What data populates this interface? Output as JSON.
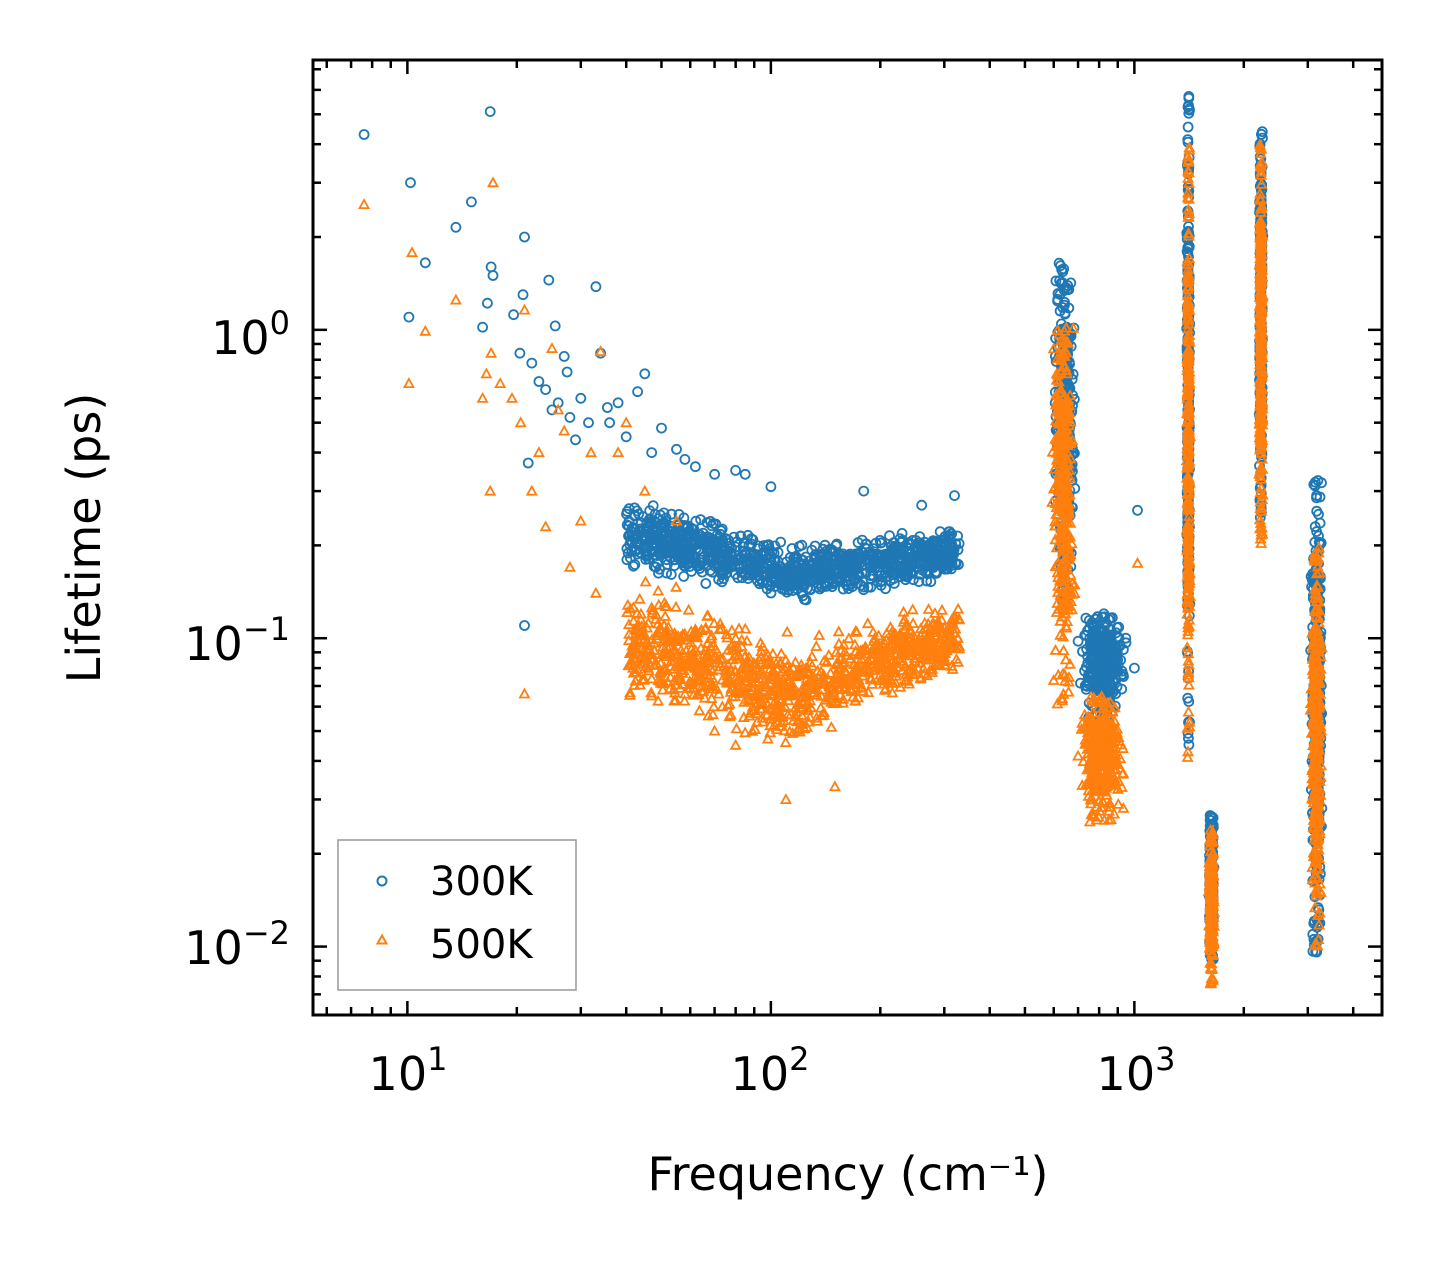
{
  "chart_data": {
    "type": "scatter",
    "xscale": "log",
    "yscale": "log",
    "xlim": [
      5.5,
      4800
    ],
    "ylim": [
      0.006,
      7.5
    ],
    "xlabel": "Frequency (cm⁻¹)",
    "ylabel": "Lifetime (ps)",
    "xticks": [
      {
        "base": "10",
        "exp": "1"
      },
      {
        "base": "10",
        "exp": "2"
      },
      {
        "base": "10",
        "exp": "3"
      }
    ],
    "yticks": [
      {
        "base": "10",
        "exp": "0"
      },
      {
        "base": "10",
        "exp": "−1"
      },
      {
        "base": "10",
        "exp": "−2"
      }
    ],
    "xtick_values": [
      10,
      100,
      1000
    ],
    "ytick_values": [
      1,
      0.1,
      0.01
    ],
    "legend": {
      "position": "lower-left"
    },
    "series": [
      {
        "name": "300K",
        "marker": "circle",
        "color": "#1f77b4",
        "points": [
          [
            7.6,
            4.3
          ],
          [
            10.2,
            3.0
          ],
          [
            10.1,
            1.1
          ],
          [
            11.2,
            1.65
          ],
          [
            13.6,
            2.15
          ],
          [
            15.0,
            2.6
          ],
          [
            16.1,
            1.02
          ],
          [
            16.6,
            1.22
          ],
          [
            16.9,
            5.1
          ],
          [
            17.0,
            1.6
          ],
          [
            17.2,
            1.5
          ],
          [
            19.6,
            1.12
          ],
          [
            20.4,
            0.84
          ],
          [
            20.8,
            1.3
          ],
          [
            21.0,
            2.0
          ],
          [
            21.5,
            0.37
          ],
          [
            21.0,
            0.11
          ],
          [
            22.0,
            0.78
          ],
          [
            23.0,
            0.68
          ],
          [
            24.0,
            0.64
          ],
          [
            24.5,
            1.45
          ],
          [
            25.0,
            0.55
          ],
          [
            25.5,
            1.03
          ],
          [
            26.0,
            0.58
          ],
          [
            27.0,
            0.82
          ],
          [
            27.5,
            0.73
          ],
          [
            28.0,
            0.52
          ],
          [
            29.0,
            0.44
          ],
          [
            30.0,
            0.6
          ],
          [
            31.5,
            0.5
          ],
          [
            33.0,
            1.38
          ],
          [
            34.0,
            0.84
          ],
          [
            35.5,
            0.56
          ],
          [
            36.0,
            0.5
          ],
          [
            38.0,
            0.58
          ],
          [
            40.0,
            0.45
          ],
          [
            43.0,
            0.63
          ],
          [
            45.0,
            0.72
          ],
          [
            47.0,
            0.4
          ],
          [
            50.0,
            0.48
          ],
          [
            55.0,
            0.41
          ],
          [
            58.0,
            0.38
          ],
          [
            62.0,
            0.36
          ],
          [
            70.0,
            0.34
          ],
          [
            80.0,
            0.35
          ],
          [
            85.0,
            0.34
          ],
          [
            100.0,
            0.31
          ],
          [
            180.0,
            0.3
          ],
          [
            260.0,
            0.27
          ],
          [
            320.0,
            0.29
          ],
          [
            1020.0,
            0.26
          ],
          [
            900.0,
            0.085
          ],
          [
            1000.0,
            0.08
          ]
        ],
        "clusters": [
          {
            "x": [
              40,
              330
            ],
            "y_top": [
              0.3,
              0.2,
              0.24
            ],
            "y_bottom": [
              0.16,
              0.13,
              0.15
            ]
          },
          {
            "x": [
              600,
              690
            ],
            "y": [
              0.13,
              1.7
            ]
          },
          {
            "x": [
              700,
              950
            ],
            "y": [
              0.055,
              0.12
            ]
          },
          {
            "x": [
              1390,
              1425
            ],
            "y": [
              0.04,
              5.8
            ]
          },
          {
            "x": [
              1600,
              1660
            ],
            "y": [
              0.009,
              0.027
            ]
          },
          {
            "x": [
              2200,
              2260
            ],
            "y": [
              0.23,
              4.8
            ]
          },
          {
            "x": [
              3050,
              3300
            ],
            "y": [
              0.0095,
              0.33
            ]
          }
        ]
      },
      {
        "name": "500K",
        "marker": "triangle",
        "color": "#ff7f0e",
        "points": [
          [
            7.6,
            2.55
          ],
          [
            10.1,
            0.67
          ],
          [
            10.3,
            1.78
          ],
          [
            11.2,
            0.99
          ],
          [
            13.6,
            1.25
          ],
          [
            16.1,
            0.6
          ],
          [
            16.5,
            0.72
          ],
          [
            16.9,
            0.3
          ],
          [
            17.0,
            0.84
          ],
          [
            17.2,
            3.0
          ],
          [
            18.0,
            0.67
          ],
          [
            19.4,
            0.6
          ],
          [
            20.5,
            0.5
          ],
          [
            21.0,
            1.16
          ],
          [
            21.0,
            0.066
          ],
          [
            22.0,
            0.3
          ],
          [
            23.0,
            0.4
          ],
          [
            24.0,
            0.23
          ],
          [
            25.0,
            0.87
          ],
          [
            26.0,
            0.55
          ],
          [
            27.0,
            0.47
          ],
          [
            28.0,
            0.17
          ],
          [
            30.0,
            0.24
          ],
          [
            32.0,
            0.4
          ],
          [
            33.0,
            0.14
          ],
          [
            34.0,
            0.85
          ],
          [
            38.0,
            0.4
          ],
          [
            40.0,
            0.5
          ],
          [
            45.0,
            0.3
          ],
          [
            47.0,
            0.065
          ],
          [
            55.0,
            0.24
          ],
          [
            70.0,
            0.05
          ],
          [
            80.0,
            0.045
          ],
          [
            110.0,
            0.03
          ],
          [
            150.0,
            0.033
          ],
          [
            1020.0,
            0.175
          ]
        ],
        "clusters": [
          {
            "x": [
              40,
              330
            ],
            "y_top": [
              0.16,
              0.1,
              0.14
            ],
            "y_bottom": [
              0.06,
              0.042,
              0.075
            ]
          },
          {
            "x": [
              590,
              690
            ],
            "y": [
              0.06,
              1.05
            ]
          },
          {
            "x": [
              700,
              950
            ],
            "y": [
              0.025,
              0.065
            ]
          },
          {
            "x": [
              1390,
              1425
            ],
            "y": [
              0.038,
              4.0
            ]
          },
          {
            "x": [
              1600,
              1660
            ],
            "y": [
              0.0075,
              0.024
            ]
          },
          {
            "x": [
              2200,
              2260
            ],
            "y": [
              0.19,
              4.2
            ]
          },
          {
            "x": [
              3050,
              3300
            ],
            "y": [
              0.0095,
              0.2
            ]
          }
        ]
      }
    ]
  }
}
